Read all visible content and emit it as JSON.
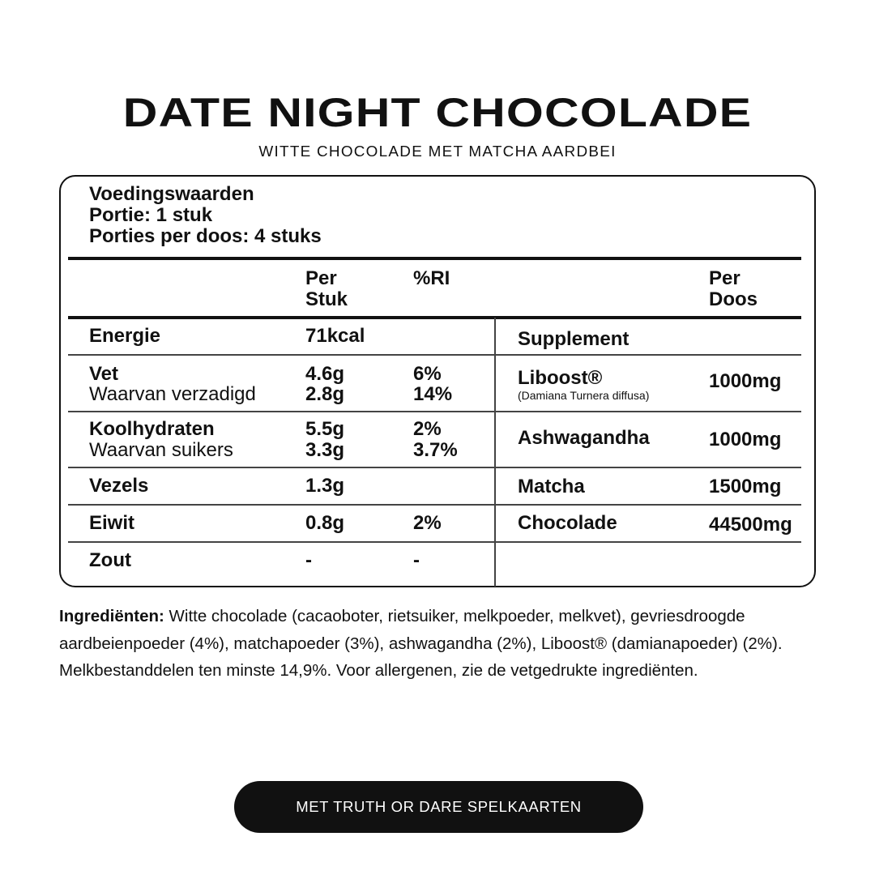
{
  "title": "DATE NIGHT CHOCOLADE",
  "subtitle": "WITTE CHOCOLADE MET MATCHA AARDBEI",
  "label": {
    "heading": "Voedingswaarden",
    "portion": "Portie: 1 stuk",
    "portions_per_box": "Porties per doos: 4 stuks",
    "col_per_piece": [
      "Per",
      "Stuk"
    ],
    "col_ri": "%RI",
    "col_per_box": [
      "Per",
      "Doos"
    ],
    "nutrients": [
      {
        "name": "Energie",
        "per": "71kcal",
        "ri": ""
      },
      {
        "name": "Vet",
        "per": "4.6g",
        "ri": "6%",
        "sub": "Waarvan verzadigd",
        "sub_per": "2.8g",
        "sub_ri": "14%"
      },
      {
        "name": "Koolhydraten",
        "per": "5.5g",
        "ri": "2%",
        "sub": "Waarvan suikers",
        "sub_per": "3.3g",
        "sub_ri": "3.7%"
      },
      {
        "name": "Vezels",
        "per": "1.3g",
        "ri": ""
      },
      {
        "name": "Eiwit",
        "per": "0.8g",
        "ri": "2%"
      },
      {
        "name": "Zout",
        "per": "-",
        "ri": "-"
      }
    ],
    "supplement_heading": "Supplement",
    "supplements": [
      {
        "name": "Liboost®",
        "note": "(Damiana Turnera diffusa)",
        "amount": "1000mg"
      },
      {
        "name": "Ashwagandha",
        "amount": "1000mg"
      },
      {
        "name": "Matcha",
        "amount": "1500mg"
      },
      {
        "name": "Chocolade",
        "amount": "44500mg"
      }
    ]
  },
  "ingredients": {
    "label": "Ingrediënten:",
    "text": " Witte chocolade (cacaoboter, rietsuiker, melkpoeder, melkvet), gevriesdroogde aardbeienpoeder (4%), matchapoeder (3%), ashwagandha (2%), Liboost® (damianapoeder) (2%). Melkbestanddelen ten minste 14,9%. Voor allergenen, zie de vetgedrukte ingrediënten."
  },
  "button": "MET TRUTH OR DARE SPELKAARTEN"
}
